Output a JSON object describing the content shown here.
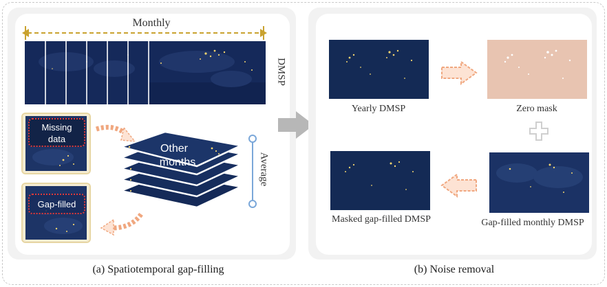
{
  "left_panel": {
    "monthly_label": "Monthly",
    "dmsp_label": "DMSP",
    "missing_line1": "Missing",
    "missing_line2": "data",
    "gapfilled_label": "Gap-filled",
    "other_line1": "Other",
    "other_line2": "months",
    "average_label": "Average",
    "caption": "(a) Spatiotemporal gap-filling"
  },
  "right_panel": {
    "yearly_label": "Yearly DMSP",
    "zero_mask_label": "Zero mask",
    "masked_label": "Masked gap-filled DMSP",
    "gapfilled_monthly_label": "Gap-filled monthly DMSP",
    "caption": "(b) Noise removal"
  },
  "colors": {
    "map_dark": "#142a55",
    "mask": "#e8c4b1",
    "arrow_orange": "#f0a77f",
    "arrow_fill": "#fde3d4",
    "average_bracket": "#7aa7d9",
    "big_arrow": "#b7b7b7",
    "dotted_red": "#e23a3a"
  }
}
